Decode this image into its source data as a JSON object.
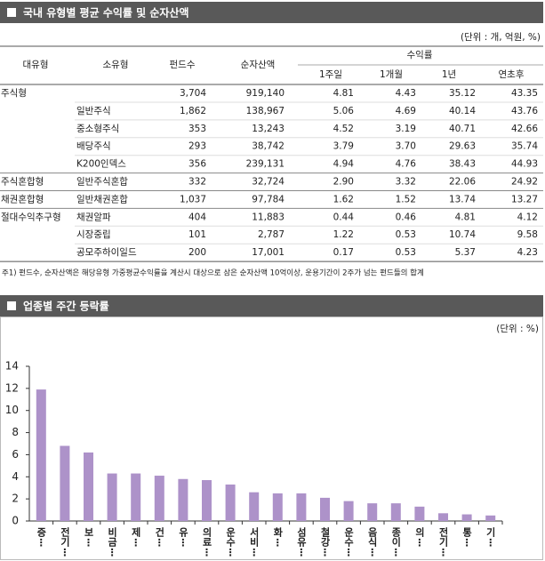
{
  "section1": {
    "title": "국내 유형별 평균 수익률 및 순자산액",
    "unit": "(단위 : 개, 억원, %)",
    "table": {
      "columns": [
        "대유형",
        "소유형",
        "펀드수",
        "순자산액"
      ],
      "return_group": "수익률",
      "return_columns": [
        "1주일",
        "1개월",
        "1년",
        "연초후"
      ],
      "rows": [
        [
          "주식형",
          null,
          "3,704",
          "919,140",
          "4.81",
          "4.43",
          "35.12",
          "43.35"
        ],
        [
          null,
          "일반주식",
          "1,862",
          "138,967",
          "5.06",
          "4.69",
          "40.14",
          "43.76"
        ],
        [
          null,
          "중소형주식",
          "353",
          "13,243",
          "4.52",
          "3.19",
          "40.71",
          "42.66"
        ],
        [
          null,
          "배당주식",
          "293",
          "38,742",
          "3.79",
          "3.70",
          "29.63",
          "35.74"
        ],
        [
          null,
          "K200인덱스",
          "356",
          "239,131",
          "4.94",
          "4.76",
          "38.43",
          "44.93"
        ],
        [
          "주식혼합형",
          "일반주식혼합",
          "332",
          "32,724",
          "2.90",
          "3.32",
          "22.06",
          "24.92"
        ],
        [
          "채권혼합형",
          "일반채권혼합",
          "1,037",
          "97,784",
          "1.62",
          "1.52",
          "13.74",
          "13.27"
        ],
        [
          "절대수익추구형",
          "채권알파",
          "404",
          "11,883",
          "0.44",
          "0.46",
          "4.81",
          "4.12"
        ],
        [
          null,
          "시장중립",
          "101",
          "2,787",
          "1.22",
          "0.53",
          "10.74",
          "9.58"
        ],
        [
          null,
          "공모주하이일드",
          "200",
          "17,001",
          "0.17",
          "0.53",
          "5.37",
          "4.23"
        ]
      ]
    },
    "footnote": "주1) 펀드수, 순자산액은 해당유형 가중평균수익률을 계산시 대상으로 삼은 순자산액 10억이상, 운용기간이 2주가 넘는 펀드들의 합계"
  },
  "chart_data": {
    "type": "bar",
    "title": "업종별 주간 등락률",
    "unit": "(단위 : %)",
    "categories": [
      "증⋮",
      "전기⋮",
      "보⋮",
      "비금⋮",
      "제⋮",
      "건⋮",
      "유⋮",
      "의료⋮",
      "운수⋮",
      "서비⋮",
      "화⋮",
      "섬유⋮",
      "철강⋮",
      "운수⋮",
      "음식⋮",
      "종이⋮",
      "의⋮",
      "전기⋮",
      "통⋮",
      "기⋮"
    ],
    "values": [
      11.9,
      6.8,
      6.2,
      4.3,
      4.3,
      4.1,
      3.8,
      3.7,
      3.3,
      2.6,
      2.5,
      2.5,
      2.1,
      1.8,
      1.6,
      1.6,
      1.3,
      0.7,
      0.6,
      0.5
    ],
    "color": "#ad92c9",
    "ylim": [
      0,
      14
    ],
    "yticks": [
      0,
      2,
      4,
      6,
      8,
      10,
      12,
      14
    ],
    "grid": false
  }
}
